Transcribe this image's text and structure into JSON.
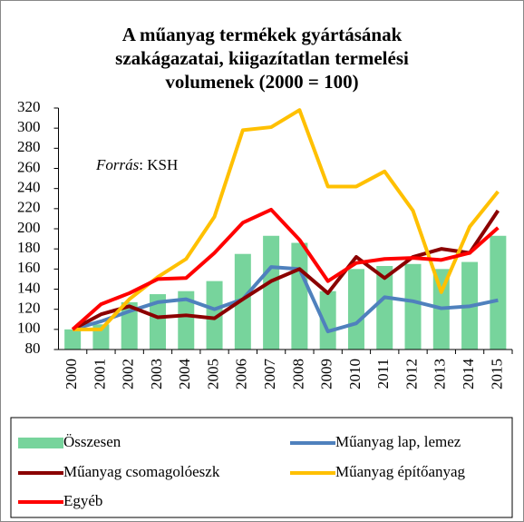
{
  "chart_data": {
    "type": "bar_line",
    "title_lines": [
      "A műanyag termékek gyártásának",
      "szakágazatai, kiigazítatlan  termelési",
      "volumenek (2000 = 100)"
    ],
    "annotation": {
      "source_label": "Forrás",
      "source": ": KSH"
    },
    "categories": [
      "2000",
      "2001",
      "2002",
      "2003",
      "2004",
      "2005",
      "2006",
      "2007",
      "2008",
      "2009",
      "2010",
      "2011",
      "2012",
      "2013",
      "2014",
      "2015"
    ],
    "series": [
      {
        "name": "Összesen",
        "type": "bar",
        "color": "#77d49c",
        "values": [
          100,
          105,
          127,
          135,
          138,
          148,
          175,
          193,
          186,
          138,
          160,
          163,
          165,
          160,
          167,
          193
        ]
      },
      {
        "name": "Műanyag lap, lemez",
        "type": "line",
        "color": "#4f81bd",
        "values": [
          100,
          108,
          118,
          127,
          130,
          120,
          130,
          162,
          160,
          98,
          106,
          132,
          128,
          121,
          123,
          129
        ]
      },
      {
        "name": "Műanyag csomagolóeszk",
        "type": "line",
        "color": "#8b0000",
        "values": [
          100,
          115,
          123,
          112,
          114,
          111,
          130,
          148,
          160,
          136,
          172,
          151,
          172,
          180,
          176,
          218
        ]
      },
      {
        "name": "Műanyag építőanyag",
        "type": "line",
        "color": "#ffc000",
        "values": [
          100,
          100,
          130,
          152,
          170,
          212,
          298,
          301,
          318,
          242,
          242,
          257,
          218,
          137,
          202,
          237
        ]
      },
      {
        "name": "Egyéb",
        "type": "line",
        "color": "#ff0000",
        "values": [
          100,
          125,
          136,
          150,
          151,
          176,
          206,
          219,
          189,
          148,
          166,
          170,
          171,
          169,
          176,
          201
        ]
      }
    ],
    "ylim": [
      80,
      320
    ],
    "yticks": [
      80,
      100,
      120,
      140,
      160,
      180,
      200,
      220,
      240,
      260,
      280,
      300,
      320
    ],
    "grid": false
  }
}
